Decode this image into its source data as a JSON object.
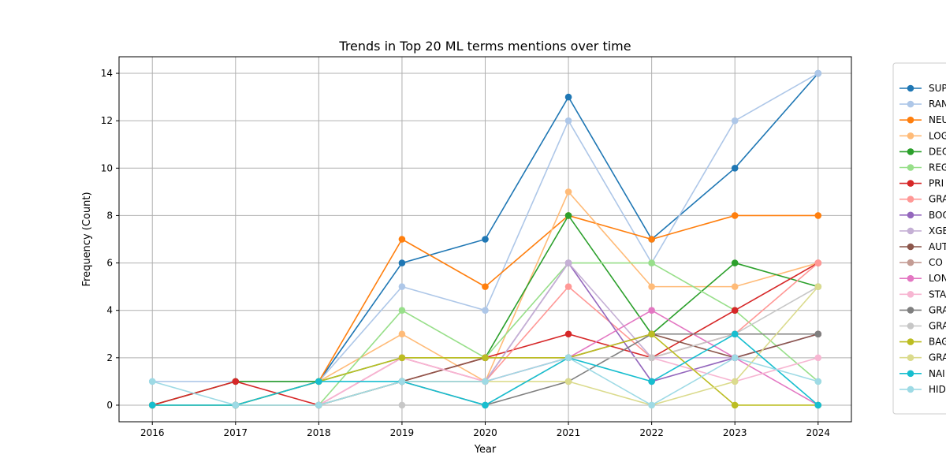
{
  "chart_data": {
    "type": "line",
    "title": "Trends in Top 20 ML terms mentions over time",
    "xlabel": "Year",
    "ylabel": "Frequency (Count)",
    "x": [
      2016,
      2017,
      2018,
      2019,
      2020,
      2021,
      2022,
      2023,
      2024
    ],
    "ylim": [
      -0.7,
      14.7
    ],
    "yticks": [
      0,
      2,
      4,
      6,
      8,
      10,
      12,
      14
    ],
    "grid": true,
    "legend_position": "right-outside",
    "series": [
      {
        "name": "SUP",
        "color": "#1f77b4",
        "values": [
          0,
          0,
          1,
          6,
          7,
          13,
          7,
          10,
          14
        ]
      },
      {
        "name": "RAN",
        "color": "#aec7e8",
        "values": [
          1,
          1,
          1,
          5,
          4,
          12,
          6,
          12,
          14
        ]
      },
      {
        "name": "NEU",
        "color": "#ff7f0e",
        "values": [
          0,
          0,
          1,
          7,
          5,
          8,
          7,
          8,
          8
        ]
      },
      {
        "name": "LOG",
        "color": "#ffbb78",
        "values": [
          0,
          0,
          1,
          3,
          1,
          9,
          5,
          5,
          6
        ]
      },
      {
        "name": "DEC",
        "color": "#2ca02c",
        "values": [
          0,
          1,
          1,
          2,
          2,
          8,
          3,
          6,
          5
        ]
      },
      {
        "name": "REG",
        "color": "#98df8a",
        "values": [
          0,
          0,
          0,
          4,
          2,
          6,
          6,
          4,
          1
        ]
      },
      {
        "name": "PRI",
        "color": "#d62728",
        "values": [
          0,
          1,
          0,
          1,
          2,
          3,
          2,
          4,
          6
        ]
      },
      {
        "name": "GRA",
        "color": "#ff9896",
        "values": [
          0,
          0,
          0,
          2,
          1,
          5,
          2,
          3,
          6
        ]
      },
      {
        "name": "BOO",
        "color": "#9467bd",
        "values": [
          0,
          0,
          0,
          1,
          1,
          6,
          1,
          2,
          3
        ]
      },
      {
        "name": "XGB",
        "color": "#c5b0d5",
        "values": [
          0,
          0,
          0,
          1,
          1,
          6,
          2,
          2,
          3
        ]
      },
      {
        "name": "AUT",
        "color": "#8c564b",
        "values": [
          0,
          0,
          0,
          1,
          2,
          2,
          3,
          2,
          3
        ]
      },
      {
        "name": "CO",
        "color": "#c49c94",
        "values": [
          0,
          0,
          0,
          1,
          1,
          2,
          2,
          3,
          3
        ]
      },
      {
        "name": "LON",
        "color": "#e377c2",
        "values": [
          0,
          0,
          0,
          2,
          1,
          2,
          4,
          2,
          0
        ]
      },
      {
        "name": "STA",
        "color": "#f7b6d2",
        "values": [
          0,
          0,
          0,
          2,
          1,
          2,
          2,
          1,
          2
        ]
      },
      {
        "name": "GRA",
        "color": "#7f7f7f",
        "values": [
          0,
          0,
          0,
          1,
          0,
          1,
          3,
          3,
          3
        ]
      },
      {
        "name": "GRA",
        "color": "#c7c7c7",
        "values": [
          0,
          0,
          0,
          0,
          0,
          2,
          2,
          3,
          5
        ]
      },
      {
        "name": "BAG",
        "color": "#bcbd22",
        "values": [
          0,
          0,
          1,
          2,
          2,
          2,
          3,
          0,
          0
        ]
      },
      {
        "name": "GRA",
        "color": "#dbdb8d",
        "values": [
          0,
          0,
          0,
          1,
          1,
          1,
          0,
          1,
          5
        ]
      },
      {
        "name": "NAI",
        "color": "#17becf",
        "values": [
          0,
          0,
          1,
          1,
          0,
          2,
          1,
          3,
          0
        ]
      },
      {
        "name": "HID",
        "color": "#9edae5",
        "values": [
          1,
          0,
          0,
          1,
          1,
          2,
          0,
          2,
          1
        ]
      }
    ]
  }
}
